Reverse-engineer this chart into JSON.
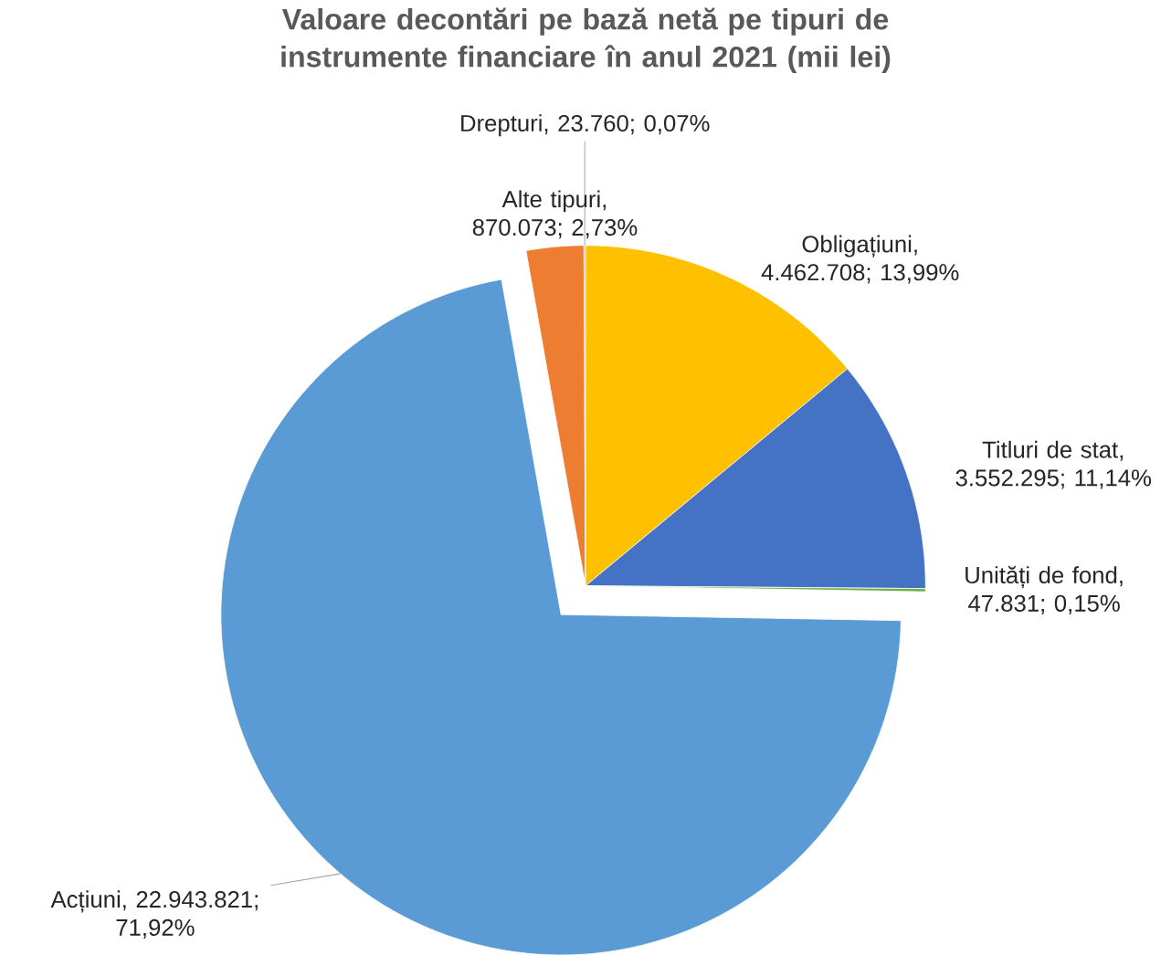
{
  "chart_data": {
    "type": "pie",
    "title": "Valoare decontări pe bază netă pe tipuri de instrumente financiare în anul 2021 (mii lei)",
    "categories": [
      "Acțiuni",
      "Alte tipuri",
      "Drepturi",
      "Obligațiuni",
      "Titluri de stat",
      "Unități de fond"
    ],
    "values": [
      22943821,
      870073,
      23760,
      4462708,
      3552295,
      47831
    ],
    "colors": [
      "#5b9bd5",
      "#ed7d31",
      "#a5a5a5",
      "#ffc000",
      "#4472c4",
      "#70ad47"
    ],
    "value_labels": [
      ", 22.943.821; 71,92%",
      ", 870.073; 2,73%",
      ", 23.760; 0,07%",
      ", 4.462.708; 13,99%",
      ", 3.552.295; 11,14%",
      ", 47.831; 0,15%"
    ],
    "legend": false
  }
}
